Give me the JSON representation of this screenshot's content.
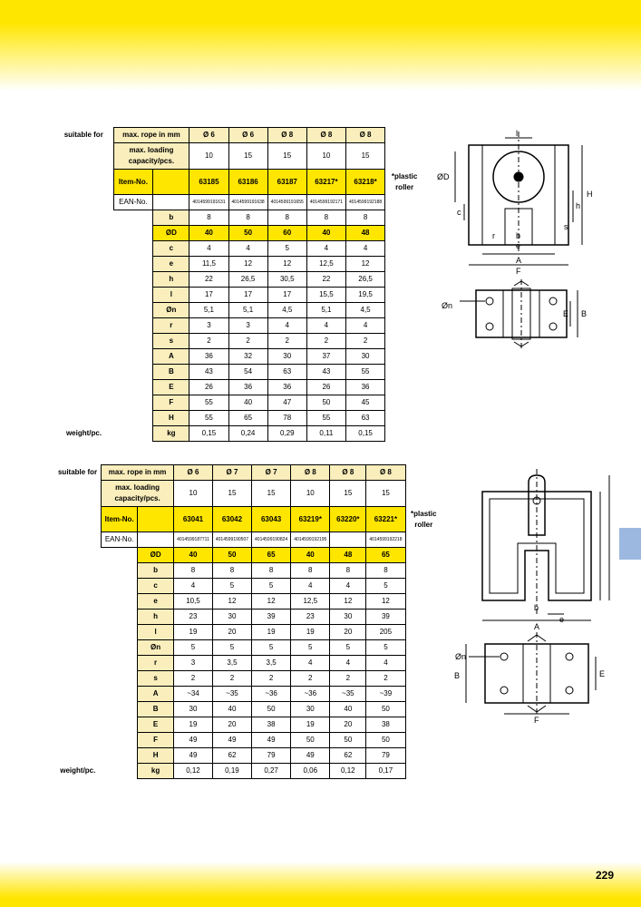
{
  "page_number": "229",
  "label_suitable": "suitable for",
  "plastic_roller": "*plastic roller",
  "hdr_rope": "max. rope in mm",
  "hdr_cap": "max. loading capacity/pcs.",
  "hdr_item": "Item-No.",
  "hdr_ean": "EAN-No.",
  "hdr_weight": "weight/pc.",
  "hdr_kg": "kg",
  "diameters1": [
    "Ø 6",
    "Ø 6",
    "Ø 8",
    "Ø 8",
    "Ø 8"
  ],
  "caps1": [
    "10",
    "15",
    "15",
    "10",
    "15"
  ],
  "items1": [
    "63185",
    "63186",
    "63187",
    "63217*",
    "63218*"
  ],
  "ean1": [
    "4014599191631",
    "4014599191638",
    "4014599191655",
    "4014599192171",
    "4014599192188"
  ],
  "params1": [
    "b",
    "ØD",
    "c",
    "e",
    "h",
    "l",
    "Øn",
    "r",
    "s",
    "A",
    "B",
    "E",
    "F",
    "H"
  ],
  "rows1": [
    [
      "8",
      "8",
      "8",
      "8",
      "8"
    ],
    [
      "40",
      "50",
      "60",
      "40",
      "48"
    ],
    [
      "4",
      "4",
      "5",
      "4",
      "4"
    ],
    [
      "11,5",
      "12",
      "12",
      "12,5",
      "12"
    ],
    [
      "22",
      "26,5",
      "30,5",
      "22",
      "26,5"
    ],
    [
      "17",
      "17",
      "17",
      "15,5",
      "19,5"
    ],
    [
      "5,1",
      "5,1",
      "4,5",
      "5,1",
      "4,5"
    ],
    [
      "3",
      "3",
      "4",
      "4",
      "4"
    ],
    [
      "2",
      "2",
      "2",
      "2",
      "2"
    ],
    [
      "36",
      "32",
      "30",
      "37",
      "30"
    ],
    [
      "43",
      "54",
      "63",
      "43",
      "55"
    ],
    [
      "26",
      "36",
      "36",
      "26",
      "36"
    ],
    [
      "55",
      "40",
      "47",
      "50",
      "45"
    ],
    [
      "55",
      "65",
      "78",
      "55",
      "63"
    ]
  ],
  "weights1": [
    "0,15",
    "0,24",
    "0,29",
    "0,11",
    "0,15"
  ],
  "diameters2": [
    "Ø 6",
    "Ø 7",
    "Ø 7",
    "Ø 8",
    "Ø 8",
    "Ø 8"
  ],
  "caps2": [
    "10",
    "15",
    "15",
    "10",
    "15",
    "15"
  ],
  "items2": [
    "63041",
    "63042",
    "63043",
    "63219*",
    "63220*",
    "63221*"
  ],
  "ean2": [
    "4014599187711",
    "4014599190507",
    "4014599190824",
    "4014599192195",
    "",
    "4014599192218"
  ],
  "params2": [
    "ØD",
    "b",
    "c",
    "e",
    "h",
    "l",
    "Øn",
    "r",
    "s",
    "A",
    "B",
    "E",
    "F",
    "H"
  ],
  "rows2": [
    [
      "40",
      "50",
      "65",
      "40",
      "48",
      "65"
    ],
    [
      "8",
      "8",
      "8",
      "8",
      "8",
      "8"
    ],
    [
      "4",
      "5",
      "5",
      "4",
      "4",
      "5"
    ],
    [
      "10,5",
      "12",
      "12",
      "12,5",
      "12",
      "12"
    ],
    [
      "23",
      "30",
      "39",
      "23",
      "30",
      "39"
    ],
    [
      "19",
      "20",
      "19",
      "19",
      "20",
      "205"
    ],
    [
      "5",
      "5",
      "5",
      "5",
      "5",
      "5"
    ],
    [
      "3",
      "3,5",
      "3,5",
      "4",
      "4",
      "4"
    ],
    [
      "2",
      "2",
      "2",
      "2",
      "2",
      "2"
    ],
    [
      "~34",
      "~35",
      "~36",
      "~36",
      "~35",
      "~39"
    ],
    [
      "30",
      "40",
      "50",
      "30",
      "40",
      "50"
    ],
    [
      "19",
      "20",
      "38",
      "19",
      "20",
      "38"
    ],
    [
      "49",
      "49",
      "49",
      "50",
      "50",
      "50"
    ],
    [
      "49",
      "62",
      "79",
      "49",
      "62",
      "79"
    ]
  ],
  "weights2": [
    "0,12",
    "0,19",
    "0,27",
    "0,06",
    "0,12",
    "0,17"
  ],
  "colors": {
    "cream": "#f9eebc",
    "yellow": "#ffe600",
    "band": "#ffe600",
    "sidetab": "#9db8e0"
  }
}
